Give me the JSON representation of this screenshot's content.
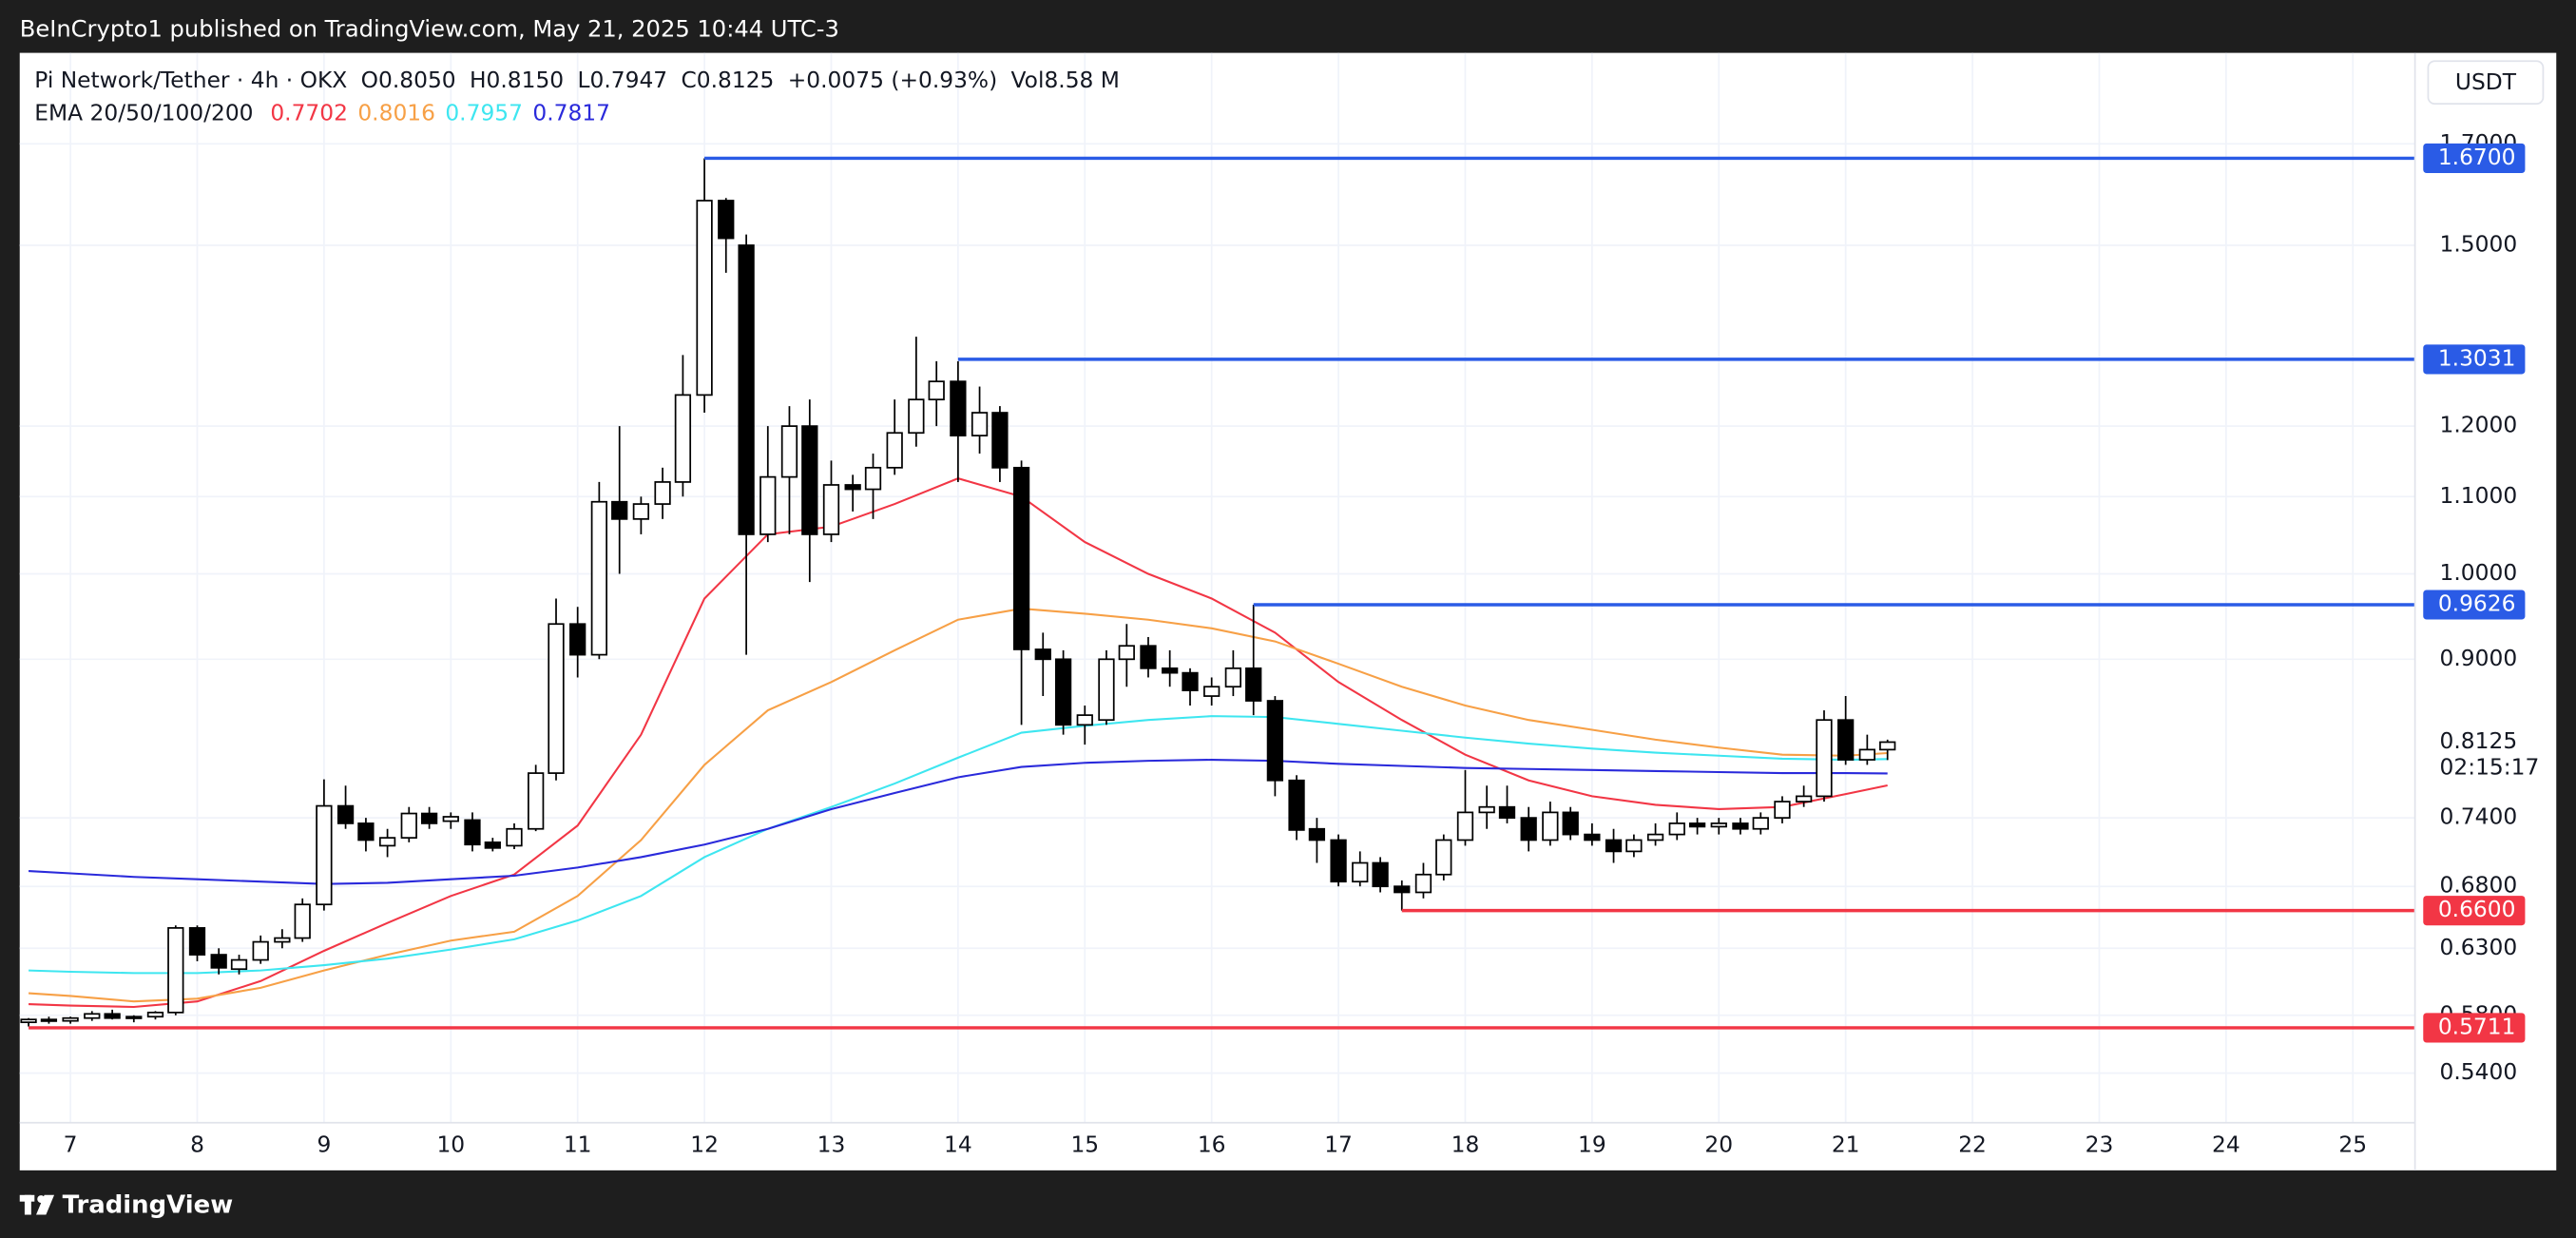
{
  "header": {
    "published": "BeInCrypto1 published on TradingView.com, May 21, 2025 10:44 UTC-3"
  },
  "footer": {
    "brand": "TradingView"
  },
  "chart_data": {
    "type": "candlestick",
    "currency": "USDT",
    "legend": {
      "symbol": "Pi Network/Tether · 4h · OKX",
      "open_label": "O",
      "open": "0.8050",
      "high_label": "H",
      "high": "0.8150",
      "low_label": "L",
      "low": "0.7947",
      "close_label": "C",
      "close": "0.8125",
      "change": "+0.0075 (+0.93%)",
      "volume_label": "Vol",
      "volume": "8.58 M"
    },
    "x": [
      6.67,
      6.83,
      7,
      7.17,
      7.33,
      7.5,
      7.67,
      7.83,
      8,
      8.17,
      8.33,
      8.5,
      8.67,
      8.83,
      9,
      9.17,
      9.33,
      9.5,
      9.67,
      9.83,
      10,
      10.17,
      10.33,
      10.5,
      10.67,
      10.83,
      11,
      11.17,
      11.33,
      11.5,
      11.67,
      11.83,
      12,
      12.17,
      12.33,
      12.5,
      12.67,
      12.83,
      13,
      13.17,
      13.33,
      13.5,
      13.67,
      13.83,
      14,
      14.17,
      14.33,
      14.5,
      14.67,
      14.83,
      15,
      15.17,
      15.33,
      15.5,
      15.67,
      15.83,
      16,
      16.17,
      16.33,
      16.5,
      16.67,
      16.83,
      17,
      17.17,
      17.33,
      17.5,
      17.67,
      17.83,
      18,
      18.17,
      18.33,
      18.5,
      18.67,
      18.83,
      19,
      19.17,
      19.33,
      19.5,
      19.67,
      19.83,
      20,
      20.17,
      20.33,
      20.5,
      20.67,
      20.83,
      21,
      21.17,
      21.33
    ],
    "open": [
      0.575,
      0.577,
      0.576,
      0.578,
      0.581,
      0.578,
      0.579,
      0.582,
      0.646,
      0.625,
      0.614,
      0.621,
      0.635,
      0.638,
      0.665,
      0.751,
      0.735,
      0.715,
      0.722,
      0.744,
      0.737,
      0.738,
      0.718,
      0.715,
      0.73,
      0.782,
      0.94,
      0.905,
      1.093,
      1.07,
      1.09,
      1.12,
      1.247,
      1.585,
      1.5,
      1.05,
      1.127,
      1.2,
      1.05,
      1.116,
      1.11,
      1.14,
      1.19,
      1.24,
      1.268,
      1.186,
      1.22,
      1.14,
      0.911,
      0.9,
      0.83,
      0.835,
      0.9,
      0.915,
      0.89,
      0.885,
      0.86,
      0.87,
      0.89,
      0.855,
      0.775,
      0.73,
      0.72,
      0.684,
      0.7,
      0.68,
      0.675,
      0.69,
      0.72,
      0.745,
      0.75,
      0.74,
      0.72,
      0.745,
      0.725,
      0.72,
      0.71,
      0.72,
      0.725,
      0.735,
      0.732,
      0.735,
      0.73,
      0.74,
      0.755,
      0.76,
      0.835,
      0.795,
      0.805
    ],
    "high": [
      0.578,
      0.579,
      0.579,
      0.583,
      0.584,
      0.58,
      0.583,
      0.648,
      0.648,
      0.63,
      0.625,
      0.64,
      0.645,
      0.67,
      0.776,
      0.77,
      0.74,
      0.73,
      0.75,
      0.75,
      0.745,
      0.745,
      0.722,
      0.735,
      0.79,
      0.97,
      0.96,
      1.12,
      1.2,
      1.1,
      1.14,
      1.31,
      1.67,
      1.59,
      1.52,
      1.2,
      1.23,
      1.24,
      1.15,
      1.13,
      1.16,
      1.24,
      1.34,
      1.3,
      1.3,
      1.26,
      1.23,
      1.15,
      0.93,
      0.91,
      0.85,
      0.91,
      0.94,
      0.925,
      0.91,
      0.89,
      0.88,
      0.91,
      0.9626,
      0.86,
      0.78,
      0.74,
      0.725,
      0.71,
      0.705,
      0.685,
      0.7,
      0.725,
      0.785,
      0.77,
      0.77,
      0.75,
      0.755,
      0.75,
      0.735,
      0.73,
      0.725,
      0.735,
      0.745,
      0.74,
      0.74,
      0.74,
      0.745,
      0.76,
      0.77,
      0.845,
      0.86,
      0.82,
      0.815
    ],
    "low": [
      0.572,
      0.574,
      0.574,
      0.576,
      0.577,
      0.575,
      0.577,
      0.58,
      0.62,
      0.61,
      0.61,
      0.618,
      0.63,
      0.635,
      0.66,
      0.73,
      0.71,
      0.705,
      0.718,
      0.73,
      0.73,
      0.71,
      0.71,
      0.712,
      0.728,
      0.775,
      0.88,
      0.9,
      1.0,
      1.05,
      1.07,
      1.1,
      1.22,
      1.45,
      0.905,
      1.04,
      1.05,
      0.99,
      1.04,
      1.08,
      1.07,
      1.13,
      1.17,
      1.2,
      1.12,
      1.16,
      1.12,
      0.83,
      0.86,
      0.82,
      0.81,
      0.83,
      0.87,
      0.88,
      0.87,
      0.85,
      0.85,
      0.86,
      0.84,
      0.76,
      0.72,
      0.7,
      0.68,
      0.68,
      0.675,
      0.66,
      0.67,
      0.685,
      0.715,
      0.73,
      0.735,
      0.71,
      0.715,
      0.72,
      0.715,
      0.7,
      0.705,
      0.715,
      0.72,
      0.725,
      0.725,
      0.725,
      0.725,
      0.735,
      0.75,
      0.755,
      0.79,
      0.79,
      0.7947
    ],
    "close": [
      0.577,
      0.576,
      0.578,
      0.581,
      0.578,
      0.579,
      0.582,
      0.646,
      0.625,
      0.615,
      0.621,
      0.635,
      0.638,
      0.665,
      0.751,
      0.735,
      0.72,
      0.722,
      0.744,
      0.735,
      0.741,
      0.716,
      0.713,
      0.73,
      0.782,
      0.94,
      0.905,
      1.093,
      1.07,
      1.09,
      1.12,
      1.247,
      1.585,
      1.513,
      1.05,
      1.127,
      1.2,
      1.05,
      1.116,
      1.11,
      1.14,
      1.19,
      1.24,
      1.268,
      1.186,
      1.22,
      1.14,
      0.911,
      0.9,
      0.83,
      0.84,
      0.9,
      0.915,
      0.89,
      0.885,
      0.866,
      0.87,
      0.89,
      0.855,
      0.775,
      0.729,
      0.72,
      0.684,
      0.7,
      0.68,
      0.675,
      0.69,
      0.72,
      0.745,
      0.75,
      0.74,
      0.72,
      0.745,
      0.725,
      0.72,
      0.71,
      0.72,
      0.725,
      0.735,
      0.732,
      0.735,
      0.73,
      0.74,
      0.755,
      0.76,
      0.835,
      0.795,
      0.805,
      0.8125
    ],
    "up_color": "#ffffff",
    "down_color": "#000000",
    "wick_color": "#000000",
    "countdown": "02:15:17",
    "ema": {
      "label": "EMA 20/50/100/200",
      "x": [
        6.67,
        7,
        7.5,
        8,
        8.5,
        9,
        9.5,
        10,
        10.5,
        11,
        11.5,
        12,
        12.5,
        13,
        13.5,
        14,
        14.5,
        15,
        15.5,
        16,
        16.5,
        17,
        17.5,
        18,
        18.5,
        19,
        19.5,
        20,
        20.5,
        21,
        21.33
      ],
      "series": [
        {
          "color": "#f23645",
          "values": [
            0.588,
            0.587,
            0.586,
            0.59,
            0.605,
            0.628,
            0.65,
            0.672,
            0.69,
            0.733,
            0.82,
            0.97,
            1.05,
            1.06,
            1.09,
            1.125,
            1.1,
            1.04,
            1.0,
            0.97,
            0.93,
            0.875,
            0.835,
            0.8,
            0.775,
            0.76,
            0.752,
            0.748,
            0.75,
            0.762,
            0.7702
          ]
        },
        {
          "color": "#f7a046",
          "values": [
            0.596,
            0.594,
            0.59,
            0.592,
            0.6,
            0.613,
            0.625,
            0.636,
            0.643,
            0.672,
            0.72,
            0.79,
            0.845,
            0.875,
            0.91,
            0.945,
            0.958,
            0.952,
            0.945,
            0.935,
            0.92,
            0.895,
            0.87,
            0.85,
            0.835,
            0.825,
            0.815,
            0.807,
            0.8,
            0.799,
            0.8016
          ]
        },
        {
          "color": "#3ee6f0",
          "values": [
            0.613,
            0.612,
            0.611,
            0.611,
            0.613,
            0.617,
            0.622,
            0.629,
            0.637,
            0.652,
            0.672,
            0.705,
            0.73,
            0.75,
            0.772,
            0.797,
            0.822,
            0.829,
            0.835,
            0.839,
            0.838,
            0.831,
            0.824,
            0.817,
            0.811,
            0.806,
            0.802,
            0.799,
            0.796,
            0.795,
            0.7957
          ]
        },
        {
          "color": "#2a2adb",
          "values": [
            0.693,
            0.691,
            0.688,
            0.686,
            0.684,
            0.682,
            0.683,
            0.686,
            0.689,
            0.696,
            0.705,
            0.716,
            0.73,
            0.748,
            0.763,
            0.778,
            0.788,
            0.792,
            0.794,
            0.795,
            0.794,
            0.791,
            0.789,
            0.787,
            0.786,
            0.785,
            0.784,
            0.783,
            0.782,
            0.782,
            0.7817
          ]
        }
      ]
    },
    "levels": [
      {
        "value": 1.67,
        "label": "1.6700",
        "color": "#2a5be6",
        "start": 12
      },
      {
        "value": 1.3031,
        "label": "1.3031",
        "color": "#2a5be6",
        "start": 14
      },
      {
        "value": 0.9626,
        "label": "0.9626",
        "color": "#2a5be6",
        "start": 16.33
      },
      {
        "value": 0.66,
        "label": "0.6600",
        "color": "#f23645",
        "start": 17.5
      },
      {
        "value": 0.5711,
        "label": "0.5711",
        "color": "#f23645",
        "start": 6.67
      }
    ],
    "log_scale": true,
    "grid": true,
    "xlim": [
      6.6,
      25.49
    ],
    "xticks": [
      7,
      8,
      9,
      10,
      11,
      12,
      13,
      14,
      15,
      16,
      17,
      18,
      19,
      20,
      21,
      22,
      23,
      24,
      25
    ],
    "ylim": [
      0.508,
      1.902
    ],
    "yticks": [
      {
        "value": 0.54,
        "label": "0.5400"
      },
      {
        "value": 0.58,
        "label": "0.5800"
      },
      {
        "value": 0.63,
        "label": "0.6300"
      },
      {
        "value": 0.68,
        "label": "0.6800"
      },
      {
        "value": 0.74,
        "label": "0.7400"
      },
      {
        "value": 0.9,
        "label": "0.9000"
      },
      {
        "value": 1.0,
        "label": "1.0000"
      },
      {
        "value": 1.1,
        "label": "1.1000"
      },
      {
        "value": 1.2,
        "label": "1.2000"
      },
      {
        "value": 1.5,
        "label": "1.5000"
      },
      {
        "value": 1.7,
        "label": "1.7000"
      }
    ]
  }
}
